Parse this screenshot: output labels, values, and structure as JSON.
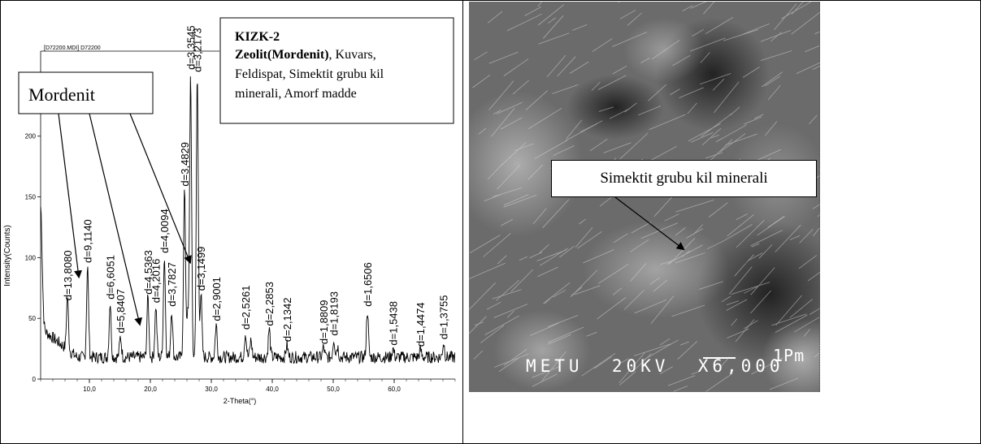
{
  "xrd_panel": {
    "file_label": "[D72200.MDI] D72200",
    "legend_box": {
      "sample": "KIZK-2",
      "zeolite_label": "Zeolit(Mordenit)",
      "description_line1": ",  Kuvars,",
      "description_line2": "Feldispat, Simektit grubu kil",
      "description_line3": "minerali, Amorf madde"
    },
    "mordenit_label": "Mordenit"
  },
  "chart_data": {
    "type": "line",
    "title": "",
    "xlabel": "2-Theta(°)",
    "ylabel": "Intensity(Counts)",
    "xlim": [
      2,
      70
    ],
    "ylim": [
      0,
      270
    ],
    "x_ticks": [
      10,
      20,
      30,
      40,
      50,
      60
    ],
    "x_tick_labels": [
      "10,0",
      "20,0",
      "30,0",
      "40,0",
      "50,0",
      "60,0"
    ],
    "y_ticks": [
      0,
      50,
      100,
      150,
      200
    ],
    "y_tick_labels": [
      "0",
      "50",
      "100",
      "150",
      "200"
    ],
    "peaks": [
      {
        "two_theta": 2.0,
        "intensity": 118
      },
      {
        "two_theta": 6.4,
        "intensity": 62
      },
      {
        "two_theta": 9.7,
        "intensity": 93
      },
      {
        "two_theta": 13.4,
        "intensity": 63
      },
      {
        "two_theta": 15.1,
        "intensity": 35
      },
      {
        "two_theta": 19.6,
        "intensity": 67
      },
      {
        "two_theta": 20.9,
        "intensity": 60
      },
      {
        "two_theta": 22.3,
        "intensity": 101
      },
      {
        "two_theta": 23.5,
        "intensity": 57
      },
      {
        "two_theta": 25.6,
        "intensity": 156
      },
      {
        "two_theta": 26.1,
        "intensity": 52
      },
      {
        "two_theta": 26.6,
        "intensity": 252
      },
      {
        "two_theta": 27.7,
        "intensity": 250
      },
      {
        "two_theta": 28.3,
        "intensity": 70
      },
      {
        "two_theta": 30.8,
        "intensity": 45
      },
      {
        "two_theta": 35.6,
        "intensity": 38
      },
      {
        "two_theta": 36.5,
        "intensity": 32
      },
      {
        "two_theta": 39.5,
        "intensity": 41
      },
      {
        "two_theta": 42.4,
        "intensity": 28
      },
      {
        "two_theta": 48.4,
        "intensity": 26
      },
      {
        "two_theta": 50.1,
        "intensity": 33
      },
      {
        "two_theta": 50.7,
        "intensity": 27
      },
      {
        "two_theta": 55.6,
        "intensity": 57
      },
      {
        "two_theta": 59.8,
        "intensity": 25
      },
      {
        "two_theta": 64.3,
        "intensity": 24
      },
      {
        "two_theta": 68.1,
        "intensity": 30
      }
    ],
    "background_intensity": 18,
    "peak_labels": [
      {
        "text": "d=13,8080",
        "two_theta": 6.4
      },
      {
        "text": "d=9,1140",
        "two_theta": 9.7
      },
      {
        "text": "d=6,6051",
        "two_theta": 13.4
      },
      {
        "text": "d=5,8407",
        "two_theta": 15.1
      },
      {
        "text": "d=4,5363",
        "two_theta": 19.6
      },
      {
        "text": "d=4,2016",
        "two_theta": 20.9
      },
      {
        "text": "d=4,0094",
        "two_theta": 22.3
      },
      {
        "text": "d=3,7827",
        "two_theta": 23.5
      },
      {
        "text": "d=3,4829",
        "two_theta": 25.6
      },
      {
        "text": "d=3,3545",
        "two_theta": 26.6
      },
      {
        "text": "d=3,2173",
        "two_theta": 27.7
      },
      {
        "text": "d=3,1499",
        "two_theta": 28.3
      },
      {
        "text": "d=2,9001",
        "two_theta": 30.8
      },
      {
        "text": "d=2,5261",
        "two_theta": 35.6
      },
      {
        "text": "d=2,2853",
        "two_theta": 39.5
      },
      {
        "text": "d=2,1342",
        "two_theta": 42.4
      },
      {
        "text": "d=1,8809",
        "two_theta": 48.4
      },
      {
        "text": "d=1,8193",
        "two_theta": 50.1
      },
      {
        "text": "d=1,6506",
        "two_theta": 55.6
      },
      {
        "text": "d=1,5438",
        "two_theta": 59.8
      },
      {
        "text": "d=1,4474",
        "two_theta": 64.3
      },
      {
        "text": "d=1,3755",
        "two_theta": 68.1
      }
    ],
    "mordenit_arrow_targets": [
      9.7,
      19.6,
      22.3
    ]
  },
  "sem_panel": {
    "label": "Simektit grubu kil minerali",
    "info": "METU  20KV  X6,000",
    "scale": "1Pm",
    "colors": {
      "background": "#5a5a5a",
      "text": "#ffffff"
    }
  }
}
